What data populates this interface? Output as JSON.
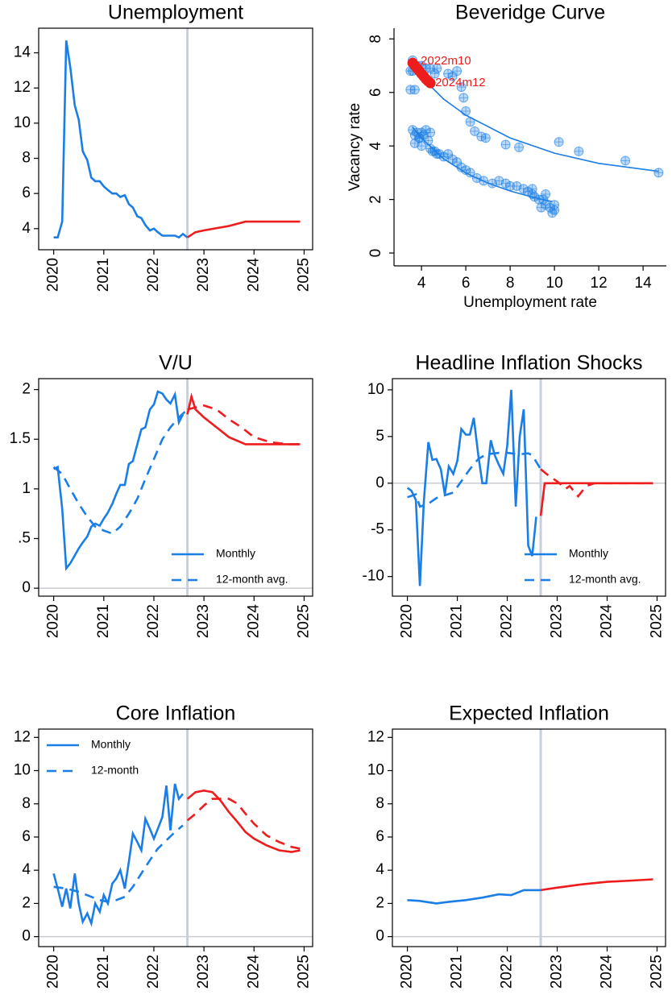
{
  "chart_data": [
    {
      "type": "line",
      "title": "Unemployment",
      "xlim": [
        2019.7,
        2025.17
      ],
      "xticks": [
        2020,
        2021,
        2022,
        2023,
        2024,
        2025
      ],
      "ylim": [
        2.8,
        15.4
      ],
      "yticks": [
        4,
        6,
        8,
        10,
        12,
        14
      ],
      "vline": 2022.67,
      "zero_line": false,
      "series": [
        {
          "color": "#1a7ee6",
          "dash": false,
          "x": [
            2020,
            2020.08,
            2020.17,
            2020.25,
            2020.33,
            2020.42,
            2020.5,
            2020.58,
            2020.67,
            2020.75,
            2020.83,
            2020.92,
            2021,
            2021.08,
            2021.17,
            2021.25,
            2021.33,
            2021.42,
            2021.5,
            2021.58,
            2021.67,
            2021.75,
            2021.83,
            2021.92,
            2022,
            2022.08,
            2022.17,
            2022.25,
            2022.33,
            2022.42,
            2022.5,
            2022.58,
            2022.67
          ],
          "values": [
            3.5,
            3.5,
            4.4,
            14.7,
            13.2,
            11.0,
            10.2,
            8.4,
            7.9,
            6.9,
            6.7,
            6.7,
            6.4,
            6.2,
            6.0,
            6.0,
            5.8,
            5.9,
            5.4,
            5.2,
            4.7,
            4.6,
            4.2,
            3.9,
            4.0,
            3.8,
            3.6,
            3.6,
            3.6,
            3.6,
            3.5,
            3.7,
            3.5
          ]
        },
        {
          "color": "#ee1c1c",
          "dash": false,
          "x": [
            2022.67,
            2022.83,
            2023,
            2023.5,
            2023.83,
            2024,
            2024.5,
            2024.92
          ],
          "values": [
            3.5,
            3.8,
            3.9,
            4.15,
            4.4,
            4.4,
            4.4,
            4.4
          ]
        }
      ]
    },
    {
      "type": "scatter",
      "title": "Beveridge Curve",
      "xlabel": "Unemployment rate",
      "ylabel": "Vacancy rate",
      "xlim": [
        2.76,
        15.05
      ],
      "xticks": [
        4,
        6,
        8,
        10,
        12,
        14
      ],
      "ylim": [
        -0.48,
        8.4
      ],
      "yticks": [
        0,
        2,
        4,
        6,
        8
      ],
      "series": [
        {
          "mode": "markers",
          "color": "#1a7ee6",
          "x": [
            3.6,
            3.7,
            3.8,
            3.9,
            4.0,
            4.1,
            4.2,
            4.3,
            4.4,
            3.7,
            3.9,
            4.0,
            4.4,
            4.5,
            4.6,
            4.7,
            4.8,
            5.0,
            5.2,
            5.4,
            5.6,
            5.8,
            6.0,
            6.2,
            6.5,
            6.8,
            7.2,
            7.5,
            7.8,
            8.0,
            8.3,
            8.6,
            8.8,
            9.0,
            9.1,
            9.3,
            9.5,
            9.6,
            9.8,
            9.9,
            10.0,
            10.0,
            9.4,
            9.6,
            9.0
          ],
          "values": [
            4.6,
            4.4,
            4.5,
            4.3,
            4.5,
            4.4,
            4.6,
            4.2,
            4.5,
            4.1,
            4.3,
            4.0,
            3.9,
            3.8,
            3.8,
            3.7,
            3.7,
            3.6,
            3.7,
            3.5,
            3.4,
            3.2,
            3.1,
            3.0,
            2.8,
            2.7,
            2.6,
            2.7,
            2.6,
            2.5,
            2.5,
            2.4,
            2.3,
            2.2,
            2.1,
            2.0,
            2.0,
            1.8,
            1.7,
            1.5,
            1.6,
            1.8,
            1.7,
            2.2,
            2.4
          ]
        },
        {
          "mode": "markers",
          "color": "#1a7ee6",
          "x": [
            14.7,
            13.2,
            11.1,
            10.2,
            8.4,
            7.8,
            6.9,
            6.7,
            6.4,
            6.2,
            6.0,
            5.9,
            5.8,
            5.4,
            5.2,
            4.7,
            4.6,
            4.2,
            3.9,
            4.0,
            3.8,
            3.6,
            3.6,
            3.5,
            3.5,
            3.7,
            4.4,
            5.6
          ],
          "values": [
            3.0,
            3.45,
            3.8,
            4.15,
            3.95,
            4.05,
            4.3,
            4.35,
            4.55,
            4.9,
            5.3,
            5.8,
            6.2,
            6.6,
            6.7,
            6.9,
            6.7,
            6.9,
            6.8,
            7.0,
            7.0,
            6.8,
            7.2,
            6.8,
            6.1,
            6.1,
            6.9,
            6.8
          ]
        },
        {
          "mode": "lines",
          "color": "#1a7ee6",
          "x": [
            3.6,
            4,
            5,
            6,
            7,
            8,
            9,
            9.9
          ],
          "values": [
            4.7,
            4.29,
            3.52,
            2.99,
            2.61,
            2.32,
            2.09,
            1.92
          ]
        },
        {
          "mode": "lines",
          "color": "#1a7ee6",
          "x": [
            3.5,
            4,
            5,
            6,
            8,
            10,
            12,
            14.7
          ],
          "values": [
            7.1,
            6.57,
            5.75,
            5.15,
            4.3,
            3.73,
            3.35,
            3.05
          ]
        },
        {
          "mode": "markers",
          "color": "#ee1c1c",
          "first_label": "2022m10",
          "last_label": "2024m12",
          "x": [
            3.6,
            3.7,
            3.8,
            3.9,
            4.0,
            4.1,
            4.2,
            4.3,
            4.4
          ],
          "values": [
            7.1,
            7.0,
            6.9,
            6.8,
            6.7,
            6.6,
            6.5,
            6.42,
            6.35
          ]
        }
      ]
    },
    {
      "type": "line",
      "title": "V/U",
      "xlim": [
        2019.7,
        2025.17
      ],
      "xticks": [
        2020,
        2021,
        2022,
        2023,
        2024,
        2025
      ],
      "ylim": [
        -0.08,
        2.11
      ],
      "yticks": [
        0,
        {
          "value": 0.5,
          "label": ".5"
        },
        1,
        1.5,
        2
      ],
      "vline": 2022.67,
      "zero_line": true,
      "legend": "bottom-right",
      "series": [
        {
          "name": "Monthly",
          "color": "#1a7ee6",
          "dash": false,
          "x": [
            2020,
            2020.08,
            2020.17,
            2020.25,
            2020.33,
            2020.42,
            2020.5,
            2020.58,
            2020.67,
            2020.75,
            2020.83,
            2020.92,
            2021,
            2021.08,
            2021.17,
            2021.25,
            2021.33,
            2021.42,
            2021.5,
            2021.58,
            2021.67,
            2021.75,
            2021.83,
            2021.92,
            2022,
            2022.08,
            2022.17,
            2022.25,
            2022.33,
            2022.42,
            2022.5,
            2022.58
          ],
          "values": [
            1.2,
            1.22,
            0.8,
            0.2,
            0.25,
            0.33,
            0.4,
            0.46,
            0.52,
            0.62,
            0.65,
            0.63,
            0.7,
            0.76,
            0.85,
            0.95,
            1.04,
            1.04,
            1.25,
            1.28,
            1.45,
            1.6,
            1.62,
            1.8,
            1.85,
            1.98,
            1.96,
            1.9,
            1.86,
            1.95,
            1.67,
            1.75
          ]
        },
        {
          "name": "12-month avg.",
          "color": "#1a7ee6",
          "dash": true,
          "x": [
            2020,
            2020.17,
            2020.33,
            2020.5,
            2020.67,
            2020.83,
            2021,
            2021.17,
            2021.33,
            2021.5,
            2021.67,
            2021.83,
            2022,
            2022.17,
            2022.33,
            2022.5,
            2022.67
          ],
          "values": [
            1.22,
            1.15,
            1.0,
            0.85,
            0.72,
            0.62,
            0.58,
            0.55,
            0.62,
            0.75,
            0.9,
            1.1,
            1.3,
            1.5,
            1.62,
            1.72,
            1.8
          ]
        },
        {
          "color": "#ee1c1c",
          "dash": false,
          "x": [
            2022.67,
            2022.75,
            2022.83,
            2023,
            2023.25,
            2023.5,
            2023.83,
            2024.5,
            2024.92
          ],
          "values": [
            1.75,
            1.93,
            1.8,
            1.72,
            1.62,
            1.52,
            1.45,
            1.45,
            1.45
          ]
        },
        {
          "color": "#ee1c1c",
          "dash": true,
          "x": [
            2022.67,
            2023,
            2023.25,
            2023.5,
            2023.75,
            2024,
            2024.33,
            2024.67,
            2024.92
          ],
          "values": [
            1.8,
            1.84,
            1.8,
            1.7,
            1.62,
            1.52,
            1.47,
            1.45,
            1.45
          ]
        }
      ]
    },
    {
      "type": "line",
      "title": "Headline Inflation Shocks",
      "xlim": [
        2019.7,
        2025.17
      ],
      "xticks": [
        2020,
        2021,
        2022,
        2023,
        2024,
        2025
      ],
      "ylim": [
        -12.1,
        11.2
      ],
      "yticks": [
        -10,
        -5,
        0,
        5,
        10
      ],
      "vline": 2022.67,
      "zero_line": true,
      "legend": "bottom-right",
      "series": [
        {
          "name": "Monthly",
          "color": "#1a7ee6",
          "dash": false,
          "x": [
            2020,
            2020.08,
            2020.17,
            2020.25,
            2020.33,
            2020.42,
            2020.5,
            2020.58,
            2020.67,
            2020.75,
            2020.83,
            2020.92,
            2021,
            2021.08,
            2021.17,
            2021.25,
            2021.33,
            2021.42,
            2021.5,
            2021.58,
            2021.67,
            2021.75,
            2021.83,
            2021.92,
            2022,
            2022.08,
            2022.17,
            2022.25,
            2022.33,
            2022.42,
            2022.5,
            2022.58
          ],
          "values": [
            -0.5,
            -0.8,
            -1.8,
            -11,
            -2,
            4.4,
            2.5,
            2.6,
            1.5,
            -1.2,
            1.8,
            1.0,
            2.4,
            5.8,
            5.2,
            5.2,
            7.0,
            3.0,
            0,
            0,
            4.6,
            3.0,
            2.0,
            1.0,
            4.0,
            10.0,
            -2.5,
            5.0,
            7.9,
            -6.7,
            -7.8,
            -3.6
          ]
        },
        {
          "name": "12-month avg.",
          "color": "#1a7ee6",
          "dash": true,
          "x": [
            2020,
            2020.17,
            2020.25,
            2020.42,
            2020.58,
            2020.75,
            2020.92,
            2021.08,
            2021.25,
            2021.42,
            2021.58,
            2021.75,
            2021.92,
            2022.08,
            2022.25,
            2022.42,
            2022.5,
            2022.67
          ],
          "values": [
            -1.5,
            -1.2,
            -2.5,
            -2.2,
            -1.6,
            -1.3,
            -1.0,
            0.2,
            1.5,
            2.6,
            3.1,
            3.2,
            3.3,
            3.2,
            3.1,
            3.2,
            3.0,
            1.5
          ]
        },
        {
          "color": "#ee1c1c",
          "dash": false,
          "x": [
            2022.67,
            2022.75,
            2024.92
          ],
          "values": [
            -3.5,
            0,
            0
          ]
        },
        {
          "color": "#ee1c1c",
          "dash": true,
          "x": [
            2022.67,
            2022.83,
            2023,
            2023.17,
            2023.25,
            2023.42,
            2023.58,
            2023.75,
            2024.92
          ],
          "values": [
            1.5,
            0.8,
            0.2,
            -0.6,
            -0.3,
            -1.4,
            -0.3,
            0,
            0
          ]
        }
      ]
    },
    {
      "type": "line",
      "title": "Core Inflation",
      "xlim": [
        2019.7,
        2025.17
      ],
      "xticks": [
        2020,
        2021,
        2022,
        2023,
        2024,
        2025
      ],
      "ylim": [
        -0.6,
        12.5
      ],
      "yticks": [
        0,
        2,
        4,
        6,
        8,
        10,
        12
      ],
      "vline": 2022.67,
      "zero_line": true,
      "legend": "top-left",
      "series": [
        {
          "name": "Monthly",
          "color": "#1a7ee6",
          "dash": false,
          "x": [
            2020,
            2020.08,
            2020.17,
            2020.25,
            2020.33,
            2020.42,
            2020.5,
            2020.58,
            2020.67,
            2020.75,
            2020.83,
            2020.92,
            2021,
            2021.08,
            2021.17,
            2021.25,
            2021.33,
            2021.42,
            2021.5,
            2021.58,
            2021.67,
            2021.75,
            2021.83,
            2021.92,
            2022,
            2022.08,
            2022.17,
            2022.25,
            2022.33,
            2022.42,
            2022.5,
            2022.58
          ],
          "values": [
            3.8,
            2.9,
            1.8,
            2.9,
            1.7,
            3.8,
            2.0,
            0.9,
            1.4,
            0.8,
            2.0,
            1.5,
            2.5,
            2.0,
            3.2,
            3.5,
            4.0,
            2.9,
            4.5,
            6.2,
            5.7,
            5.2,
            7.1,
            6.5,
            5.9,
            6.5,
            7.2,
            9.1,
            6.4,
            9.2,
            8.3,
            8.6
          ]
        },
        {
          "name": "12-month",
          "color": "#1a7ee6",
          "dash": true,
          "x": [
            2020,
            2020.25,
            2020.5,
            2020.75,
            2020.92,
            2021.08,
            2021.25,
            2021.42,
            2021.58,
            2021.75,
            2021.92,
            2022.08,
            2022.25,
            2022.42,
            2022.58
          ],
          "values": [
            3.0,
            2.9,
            2.7,
            2.4,
            2.2,
            2.1,
            2.2,
            2.4,
            3.0,
            3.8,
            4.6,
            5.3,
            5.8,
            6.3,
            6.7
          ]
        },
        {
          "color": "#ee1c1c",
          "dash": false,
          "x": [
            2022.67,
            2022.83,
            2023,
            2023.17,
            2023.33,
            2023.5,
            2023.67,
            2023.83,
            2024,
            2024.25,
            2024.5,
            2024.75,
            2024.92
          ],
          "values": [
            8.3,
            8.7,
            8.8,
            8.7,
            8.2,
            7.5,
            6.9,
            6.3,
            5.9,
            5.5,
            5.2,
            5.1,
            5.2
          ]
        },
        {
          "color": "#ee1c1c",
          "dash": true,
          "x": [
            2022.67,
            2022.83,
            2023,
            2023.17,
            2023.33,
            2023.5,
            2023.67,
            2023.83,
            2024,
            2024.25,
            2024.5,
            2024.75,
            2024.92
          ],
          "values": [
            7.0,
            7.4,
            7.9,
            8.3,
            8.3,
            8.3,
            8.0,
            7.4,
            6.8,
            6.1,
            5.7,
            5.4,
            5.3
          ]
        }
      ]
    },
    {
      "type": "line",
      "title": "Expected Inflation",
      "xlim": [
        2019.7,
        2025.17
      ],
      "xticks": [
        2020,
        2021,
        2022,
        2023,
        2024,
        2025
      ],
      "ylim": [
        -0.6,
        12.5
      ],
      "yticks": [
        0,
        2,
        4,
        6,
        8,
        10,
        12
      ],
      "vline": 2022.67,
      "zero_line": true,
      "series": [
        {
          "color": "#1a7ee6",
          "dash": false,
          "x": [
            2020,
            2020.25,
            2020.58,
            2020.83,
            2021.17,
            2021.5,
            2021.83,
            2022.08,
            2022.33,
            2022.67
          ],
          "values": [
            2.2,
            2.15,
            2.0,
            2.1,
            2.2,
            2.35,
            2.55,
            2.5,
            2.8,
            2.8
          ]
        },
        {
          "color": "#ee1c1c",
          "dash": false,
          "x": [
            2022.67,
            2023,
            2023.5,
            2024,
            2024.5,
            2024.92
          ],
          "values": [
            2.8,
            2.95,
            3.15,
            3.3,
            3.38,
            3.45
          ]
        }
      ]
    }
  ]
}
